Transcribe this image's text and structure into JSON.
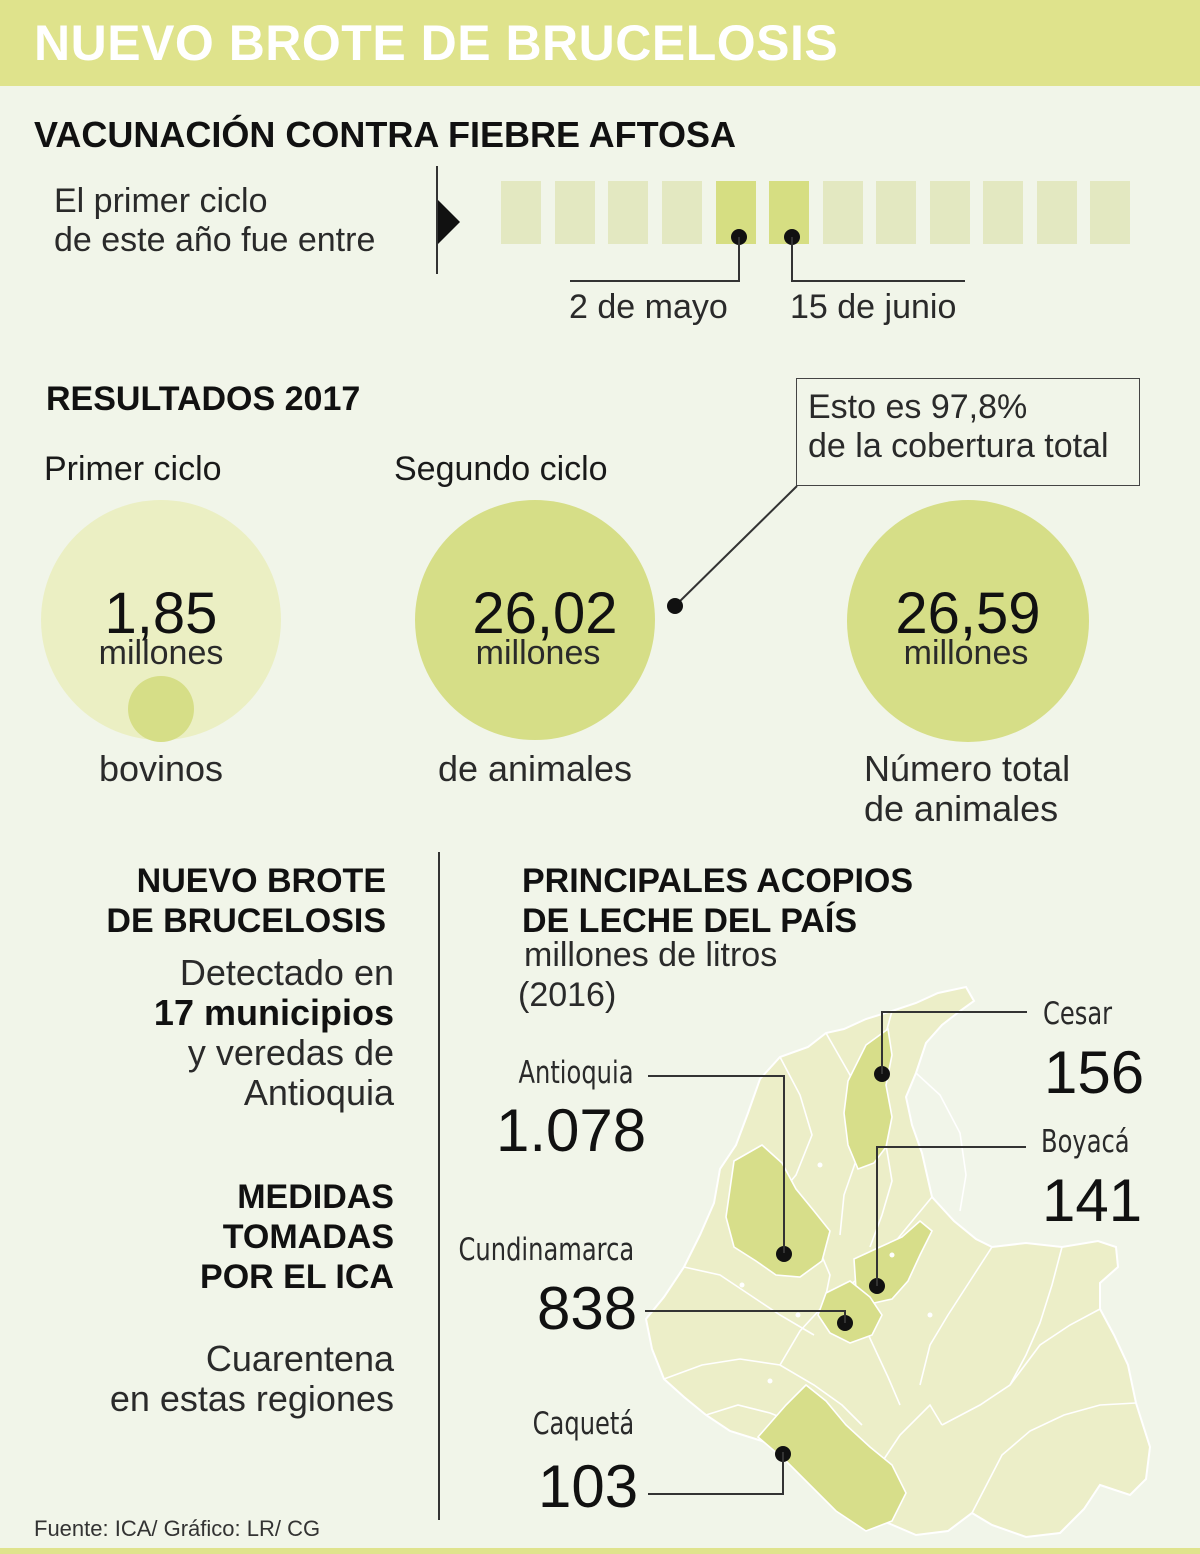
{
  "header": {
    "title": "NUEVO BROTE DE BRUCELOSIS"
  },
  "vaccination": {
    "heading": "VACUNACIÓN CONTRA FIEBRE AFTOSA",
    "intro_line1": "El primer ciclo",
    "intro_line2": "de este año fue entre",
    "start_label": "2 de mayo",
    "end_label": "15 de junio"
  },
  "results": {
    "heading": "RESULTADOS 2017",
    "first": {
      "label": "Primer ciclo",
      "value": "1,85",
      "unit": "millones",
      "caption": "bovinos"
    },
    "second": {
      "label": "Segundo ciclo",
      "value": "26,02",
      "unit": "millones",
      "caption": "de animales"
    },
    "total": {
      "value": "26,59",
      "unit": "millones",
      "caption_line1": "Número total",
      "caption_line2": "de animales"
    },
    "callout_line1": "Esto es 97,8%",
    "callout_line2": "de la cobertura total"
  },
  "outbreak": {
    "heading_line1": "NUEVO BROTE",
    "heading_line2": "DE BRUCELOSIS",
    "line1": "Detectado en",
    "line2": "17 municipios",
    "line3": "y veredas de",
    "line4": "Antioquia"
  },
  "measures": {
    "heading_line1": "MEDIDAS",
    "heading_line2": "TOMADAS",
    "heading_line3": "POR EL ICA",
    "text_line1": "Cuarentena",
    "text_line2": "en estas regiones"
  },
  "milk": {
    "heading_line1": "PRINCIPALES ACOPIOS",
    "heading_line2": "DE LECHE DEL PAÍS",
    "sub_line1": "millones de litros",
    "sub_line2": "(2016)",
    "regions": [
      {
        "name": "Antioquia",
        "value": "1.078"
      },
      {
        "name": "Cundinamarca",
        "value": "838"
      },
      {
        "name": "Caquetá",
        "value": "103"
      },
      {
        "name": "Cesar",
        "value": "156"
      },
      {
        "name": "Boyacá",
        "value": "141"
      }
    ]
  },
  "footer": {
    "source": "Fuente: ICA/ Gráfico: LR/ CG"
  },
  "colors": {
    "background": "#f1f5e9",
    "accent": "#dfe38c",
    "circle_light": "#ebefc3",
    "circle_dark": "#d6de87",
    "map_base": "#eceec8",
    "map_highlight": "#d7de8a"
  }
}
